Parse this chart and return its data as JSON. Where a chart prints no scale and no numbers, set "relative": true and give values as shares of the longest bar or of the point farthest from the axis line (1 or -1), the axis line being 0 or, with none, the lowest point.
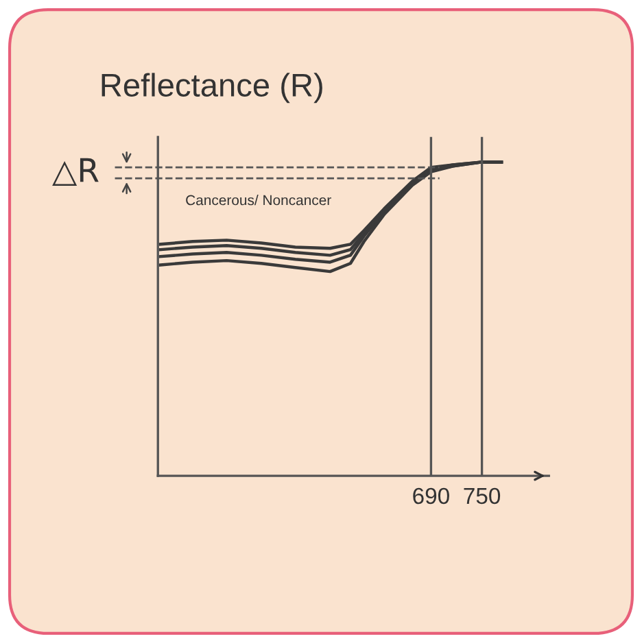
{
  "chart_data": {
    "type": "line",
    "relative": true,
    "ylabel": "Reflectance (R)",
    "x": [
      371,
      409,
      449,
      490,
      530,
      571,
      595,
      611,
      635,
      668,
      690,
      716,
      750,
      773
    ],
    "xlim": [
      368,
      829
    ],
    "xticks": [
      690,
      750
    ],
    "series": [
      {
        "color": "#3a3a3a",
        "values": [
          0.738,
          0.747,
          0.751,
          0.742,
          0.729,
          0.725,
          0.738,
          0.782,
          0.852,
          0.939,
          0.983,
          0.991,
          1.0,
          1.0
        ]
      },
      {
        "color": "#3a3a3a",
        "values": [
          0.721,
          0.729,
          0.734,
          0.725,
          0.712,
          0.703,
          0.721,
          0.773,
          0.847,
          0.934,
          0.978,
          0.991,
          1.0,
          1.0
        ]
      },
      {
        "color": "#3a3a3a",
        "values": [
          0.699,
          0.707,
          0.712,
          0.703,
          0.69,
          0.681,
          0.703,
          0.764,
          0.843,
          0.93,
          0.974,
          0.987,
          1.0,
          1.0
        ]
      },
      {
        "color": "#3a3a3a",
        "values": [
          0.672,
          0.681,
          0.686,
          0.677,
          0.664,
          0.651,
          0.677,
          0.747,
          0.834,
          0.926,
          0.969,
          0.987,
          1.0,
          1.0
        ]
      }
    ],
    "ref_lines": [
      {
        "axis": "y",
        "value": 0.983,
        "line_style": "dashed",
        "color": "#555555"
      },
      {
        "axis": "y",
        "value": 0.948,
        "line_style": "dashed",
        "color": "#555555"
      },
      {
        "axis": "x",
        "value": 690,
        "line_style": "solid",
        "color": "#555555"
      },
      {
        "axis": "x",
        "value": 750,
        "line_style": "solid",
        "color": "#555555"
      }
    ],
    "annotations": [
      "△R",
      "Cancerous/ Noncancer"
    ],
    "line_style": "solid",
    "marker": "none",
    "grid": false,
    "legend": false
  }
}
